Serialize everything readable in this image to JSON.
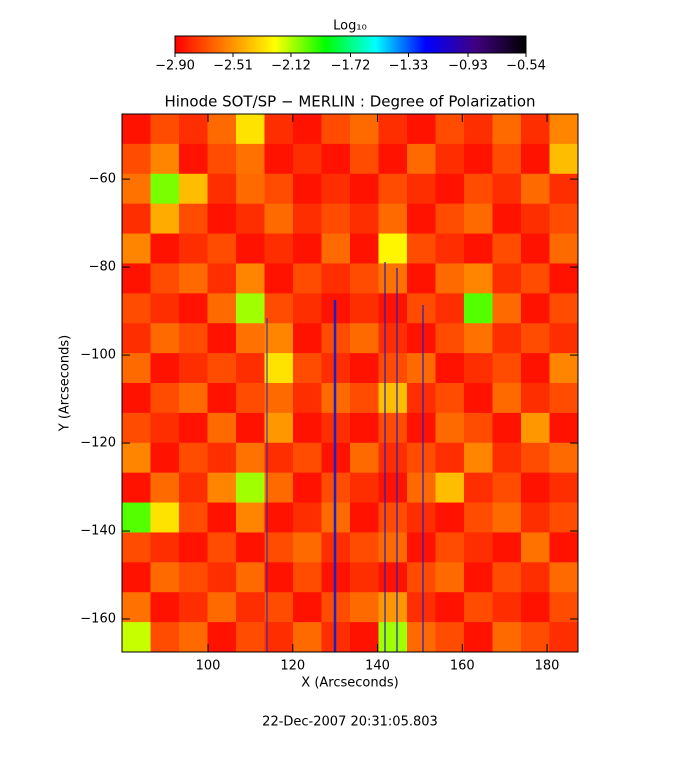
{
  "chart_data": {
    "type": "heatmap",
    "title": "Hinode SOT/SP − MERLIN : Degree of Polarization",
    "x_label": "X (Arcseconds)",
    "y_label": "Y (Arcseconds)",
    "footer": "22-Dec-2007 20:31:05.803",
    "colorbar_label": "Log₁₀",
    "colormap": [
      "#ff0000",
      "#ff8000",
      "#ffff00",
      "#00ff00",
      "#00ffff",
      "#0000ff",
      "#400080",
      "#000000"
    ],
    "zlim": [
      -2.9,
      -0.54
    ],
    "colorbar_ticks": [
      {
        "value": -2.9,
        "label": "−2.90"
      },
      {
        "value": -2.51,
        "label": "−2.51"
      },
      {
        "value": -2.12,
        "label": "−2.12"
      },
      {
        "value": -1.72,
        "label": "−1.72"
      },
      {
        "value": -1.33,
        "label": "−1.33"
      },
      {
        "value": -0.93,
        "label": "−0.93"
      },
      {
        "value": -0.54,
        "label": "−0.54"
      }
    ],
    "xlim": [
      79.7,
      187.3
    ],
    "xticks": [
      100,
      120,
      140,
      160,
      180
    ],
    "ylim": [
      -167.5,
      -45.2
    ],
    "yticks": [
      {
        "value": -60,
        "label": "−60"
      },
      {
        "value": -80,
        "label": "−80"
      },
      {
        "value": -100,
        "label": "−100"
      },
      {
        "value": -120,
        "label": "−120"
      },
      {
        "value": -140,
        "label": "−140"
      },
      {
        "value": -160,
        "label": "−160"
      }
    ],
    "z": [
      [
        -2.85,
        -2.7,
        -2.78,
        -2.62,
        -2.3,
        -2.78,
        -2.85,
        -2.7,
        -2.62,
        -2.78,
        -2.85,
        -2.7,
        -2.78,
        -2.62,
        -2.78,
        -2.55
      ],
      [
        -2.7,
        -2.55,
        -2.85,
        -2.7,
        -2.6,
        -2.85,
        -2.78,
        -2.85,
        -2.7,
        -2.85,
        -2.62,
        -2.78,
        -2.85,
        -2.7,
        -2.85,
        -2.4
      ],
      [
        -2.6,
        -2.05,
        -2.4,
        -2.78,
        -2.62,
        -2.7,
        -2.85,
        -2.78,
        -2.85,
        -2.7,
        -2.78,
        -2.85,
        -2.7,
        -2.78,
        -2.62,
        -2.78
      ],
      [
        -2.78,
        -2.45,
        -2.7,
        -2.85,
        -2.78,
        -2.62,
        -2.78,
        -2.7,
        -2.78,
        -2.62,
        -2.85,
        -2.7,
        -2.62,
        -2.85,
        -2.78,
        -2.7
      ],
      [
        -2.55,
        -2.85,
        -2.78,
        -2.7,
        -2.85,
        -2.78,
        -2.85,
        -2.62,
        -2.85,
        -2.25,
        -2.7,
        -2.78,
        -2.85,
        -2.7,
        -2.85,
        -2.62
      ],
      [
        -2.85,
        -2.7,
        -2.62,
        -2.78,
        -2.55,
        -2.85,
        -2.7,
        -2.78,
        -2.7,
        -2.6,
        -2.85,
        -2.62,
        -2.55,
        -2.78,
        -2.7,
        -2.85
      ],
      [
        -2.7,
        -2.78,
        -2.85,
        -2.62,
        -2.1,
        -2.7,
        -2.78,
        -2.85,
        -2.78,
        -2.85,
        -2.7,
        -2.78,
        -2.0,
        -2.62,
        -2.85,
        -2.7
      ],
      [
        -2.78,
        -2.62,
        -2.7,
        -2.85,
        -2.6,
        -2.55,
        -2.85,
        -2.7,
        -2.62,
        -2.78,
        -2.85,
        -2.7,
        -2.6,
        -2.78,
        -2.7,
        -2.78
      ],
      [
        -2.62,
        -2.85,
        -2.78,
        -2.7,
        -2.78,
        -2.3,
        -2.7,
        -2.78,
        -2.85,
        -2.7,
        -2.62,
        -2.85,
        -2.78,
        -2.7,
        -2.85,
        -2.55
      ],
      [
        -2.85,
        -2.7,
        -2.62,
        -2.85,
        -2.7,
        -2.62,
        -2.78,
        -2.62,
        -2.7,
        -2.4,
        -2.78,
        -2.7,
        -2.85,
        -2.62,
        -2.78,
        -2.7
      ],
      [
        -2.7,
        -2.78,
        -2.85,
        -2.62,
        -2.85,
        -2.5,
        -2.85,
        -2.78,
        -2.85,
        -2.7,
        -2.85,
        -2.62,
        -2.7,
        -2.85,
        -2.5,
        -2.85
      ],
      [
        -2.55,
        -2.85,
        -2.7,
        -2.78,
        -2.6,
        -2.78,
        -2.7,
        -2.85,
        -2.62,
        -2.78,
        -2.7,
        -2.78,
        -2.55,
        -2.78,
        -2.7,
        -2.62
      ],
      [
        -2.85,
        -2.62,
        -2.78,
        -2.55,
        -2.1,
        -2.62,
        -2.85,
        -2.7,
        -2.78,
        -2.85,
        -2.62,
        -2.4,
        -2.78,
        -2.7,
        -2.85,
        -2.78
      ],
      [
        -2.0,
        -2.3,
        -2.7,
        -2.85,
        -2.55,
        -2.85,
        -2.78,
        -2.62,
        -2.85,
        -2.7,
        -2.78,
        -2.85,
        -2.7,
        -2.62,
        -2.78,
        -2.7
      ],
      [
        -2.7,
        -2.78,
        -2.85,
        -2.7,
        -2.85,
        -2.7,
        -2.62,
        -2.78,
        -2.7,
        -2.62,
        -2.85,
        -2.7,
        -2.78,
        -2.85,
        -2.6,
        -2.85
      ],
      [
        -2.85,
        -2.62,
        -2.7,
        -2.78,
        -2.62,
        -2.85,
        -2.7,
        -2.85,
        -2.78,
        -2.85,
        -2.7,
        -2.62,
        -2.85,
        -2.7,
        -2.78,
        -2.62
      ],
      [
        -2.6,
        -2.85,
        -2.78,
        -2.62,
        -2.78,
        -2.7,
        -2.85,
        -2.7,
        -2.62,
        -2.5,
        -2.78,
        -2.85,
        -2.7,
        -2.78,
        -2.85,
        -2.7
      ],
      [
        -2.15,
        -2.7,
        -2.62,
        -2.85,
        -2.7,
        -2.78,
        -2.62,
        -2.78,
        -2.85,
        -2.1,
        -2.62,
        -2.7,
        -2.85,
        -2.62,
        -2.7,
        -2.78
      ]
    ]
  }
}
